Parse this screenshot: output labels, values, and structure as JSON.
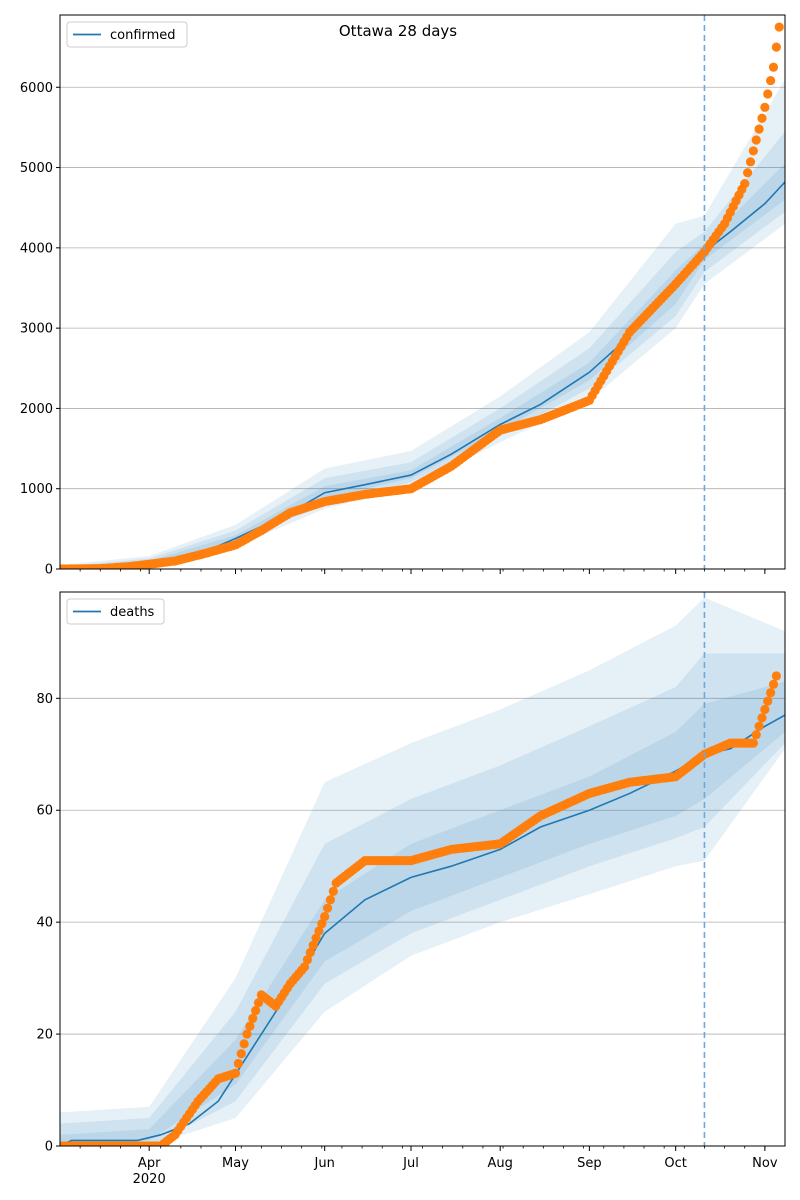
{
  "title": "Ottawa 28 days",
  "colors": {
    "line": "#1f77b4",
    "points": "#ff7f0e",
    "band": "#1f77b4",
    "grid": "#b0b0b0",
    "vline": "#6fa8dc"
  },
  "chart_data": [
    {
      "type": "line",
      "title": "Ottawa 28 days",
      "xlabel": "",
      "ylabel": "",
      "legend": {
        "entries": [
          "confirmed"
        ],
        "placement": "top-left"
      },
      "grid": "horizontal",
      "xlim": [
        "2020-03-01",
        "2020-11-08"
      ],
      "ylim": [
        0,
        6900
      ],
      "yticks": [
        0,
        1000,
        2000,
        3000,
        4000,
        5000,
        6000
      ],
      "xticks": [
        {
          "date": "2020-04-01",
          "label": "Apr",
          "sublabel": "2020"
        },
        {
          "date": "2020-05-01",
          "label": "May"
        },
        {
          "date": "2020-06-01",
          "label": "Jun"
        },
        {
          "date": "2020-07-01",
          "label": "Jul"
        },
        {
          "date": "2020-08-01",
          "label": "Aug"
        },
        {
          "date": "2020-09-01",
          "label": "Sep"
        },
        {
          "date": "2020-10-01",
          "label": "Oct"
        },
        {
          "date": "2020-11-01",
          "label": "Nov"
        }
      ],
      "forecast_start": "2020-10-11",
      "series": [
        {
          "name": "confirmed",
          "kind": "model-line",
          "x": [
            "2020-03-01",
            "2020-03-15",
            "2020-03-25",
            "2020-04-01",
            "2020-04-10",
            "2020-04-20",
            "2020-05-01",
            "2020-05-10",
            "2020-05-20",
            "2020-06-01",
            "2020-06-15",
            "2020-07-01",
            "2020-07-15",
            "2020-08-01",
            "2020-08-15",
            "2020-09-01",
            "2020-09-15",
            "2020-10-01",
            "2020-10-11",
            "2020-10-20",
            "2020-11-01",
            "2020-11-08"
          ],
          "y": [
            0,
            10,
            40,
            70,
            120,
            210,
            380,
            530,
            700,
            950,
            1050,
            1170,
            1430,
            1800,
            2050,
            2450,
            2900,
            3500,
            3950,
            4200,
            4550,
            4820
          ]
        },
        {
          "name": "",
          "kind": "observed-points",
          "x": [
            "2020-03-01",
            "2020-03-15",
            "2020-03-25",
            "2020-04-01",
            "2020-04-10",
            "2020-04-20",
            "2020-05-01",
            "2020-05-10",
            "2020-05-20",
            "2020-06-01",
            "2020-06-15",
            "2020-07-01",
            "2020-07-15",
            "2020-08-01",
            "2020-08-15",
            "2020-09-01",
            "2020-09-15",
            "2020-10-01",
            "2020-10-11",
            "2020-10-18",
            "2020-10-25",
            "2020-11-01",
            "2020-11-04",
            "2020-11-06"
          ],
          "y": [
            0,
            5,
            30,
            60,
            100,
            190,
            300,
            480,
            700,
            840,
            930,
            1000,
            1280,
            1730,
            1860,
            2100,
            2950,
            3550,
            3950,
            4300,
            4800,
            5750,
            6250,
            6750
          ]
        }
      ],
      "bands": [
        {
          "x": [
            "2020-03-01",
            "2020-04-01",
            "2020-05-01",
            "2020-06-01",
            "2020-07-01",
            "2020-08-01",
            "2020-09-01",
            "2020-10-01",
            "2020-10-11",
            "2020-11-08"
          ],
          "lower": [
            0,
            40,
            280,
            750,
            1020,
            1580,
            2100,
            3000,
            3550,
            4300
          ],
          "upper": [
            50,
            160,
            550,
            1250,
            1470,
            2150,
            2950,
            4300,
            4400,
            6100
          ]
        },
        {
          "x": [
            "2020-03-01",
            "2020-04-01",
            "2020-05-01",
            "2020-06-01",
            "2020-07-01",
            "2020-08-01",
            "2020-09-01",
            "2020-10-01",
            "2020-10-11",
            "2020-11-08"
          ],
          "lower": [
            0,
            50,
            310,
            820,
            1080,
            1650,
            2250,
            3150,
            3700,
            4450
          ],
          "upper": [
            30,
            130,
            480,
            1130,
            1330,
            2000,
            2750,
            3950,
            4200,
            5450
          ]
        },
        {
          "x": [
            "2020-03-01",
            "2020-04-01",
            "2020-05-01",
            "2020-06-01",
            "2020-07-01",
            "2020-08-01",
            "2020-09-01",
            "2020-10-01",
            "2020-10-11",
            "2020-11-08"
          ],
          "lower": [
            0,
            60,
            340,
            880,
            1130,
            1720,
            2350,
            3300,
            3850,
            4600
          ],
          "upper": [
            20,
            100,
            420,
            1030,
            1230,
            1880,
            2570,
            3720,
            4050,
            5050
          ]
        }
      ]
    },
    {
      "type": "line",
      "title": "",
      "xlabel": "",
      "ylabel": "",
      "legend": {
        "entries": [
          "deaths"
        ],
        "placement": "top-left"
      },
      "grid": "horizontal",
      "xlim": [
        "2020-03-01",
        "2020-11-08"
      ],
      "ylim": [
        0,
        99
      ],
      "yticks": [
        0,
        20,
        40,
        60,
        80
      ],
      "xticks": [
        {
          "date": "2020-04-01",
          "label": "Apr",
          "sublabel": "2020"
        },
        {
          "date": "2020-05-01",
          "label": "May"
        },
        {
          "date": "2020-06-01",
          "label": "Jun"
        },
        {
          "date": "2020-07-01",
          "label": "Jul"
        },
        {
          "date": "2020-08-01",
          "label": "Aug"
        },
        {
          "date": "2020-09-01",
          "label": "Sep"
        },
        {
          "date": "2020-10-01",
          "label": "Oct"
        },
        {
          "date": "2020-11-01",
          "label": "Nov"
        }
      ],
      "forecast_start": "2020-10-11",
      "series": [
        {
          "name": "deaths",
          "kind": "model-line",
          "x": [
            "2020-03-01",
            "2020-03-05",
            "2020-03-28",
            "2020-04-05",
            "2020-04-15",
            "2020-04-25",
            "2020-05-05",
            "2020-05-15",
            "2020-05-25",
            "2020-06-01",
            "2020-06-15",
            "2020-07-01",
            "2020-07-15",
            "2020-08-01",
            "2020-08-15",
            "2020-09-01",
            "2020-09-15",
            "2020-10-01",
            "2020-10-11",
            "2020-10-20",
            "2020-11-01",
            "2020-11-08"
          ],
          "y": [
            0,
            1,
            1,
            2,
            4,
            8,
            16,
            24,
            32,
            38,
            44,
            48,
            50,
            53,
            57,
            60,
            63,
            67,
            70,
            71,
            75,
            77
          ]
        },
        {
          "name": "",
          "kind": "observed-points",
          "x": [
            "2020-03-01",
            "2020-04-05",
            "2020-04-10",
            "2020-04-18",
            "2020-04-25",
            "2020-05-01",
            "2020-05-05",
            "2020-05-10",
            "2020-05-15",
            "2020-05-20",
            "2020-05-25",
            "2020-06-01",
            "2020-06-05",
            "2020-06-15",
            "2020-07-01",
            "2020-07-15",
            "2020-08-01",
            "2020-08-15",
            "2020-09-01",
            "2020-09-15",
            "2020-10-01",
            "2020-10-11",
            "2020-10-20",
            "2020-10-28",
            "2020-11-01",
            "2020-11-05"
          ],
          "y": [
            0,
            0,
            2,
            8,
            12,
            13,
            20,
            27,
            25,
            29,
            32,
            41,
            47,
            51,
            51,
            53,
            54,
            59,
            63,
            65,
            66,
            70,
            72,
            72,
            78,
            84
          ]
        }
      ],
      "bands": [
        {
          "x": [
            "2020-03-01",
            "2020-04-01",
            "2020-05-01",
            "2020-06-01",
            "2020-07-01",
            "2020-08-01",
            "2020-09-01",
            "2020-10-01",
            "2020-10-11",
            "2020-11-08"
          ],
          "lower": [
            0,
            0,
            5,
            24,
            34,
            40,
            45,
            50,
            51,
            71
          ],
          "upper": [
            6,
            7,
            30,
            65,
            72,
            78,
            85,
            93,
            98,
            92
          ]
        },
        {
          "x": [
            "2020-03-01",
            "2020-04-01",
            "2020-05-01",
            "2020-06-01",
            "2020-07-01",
            "2020-08-01",
            "2020-09-01",
            "2020-10-01",
            "2020-10-11",
            "2020-11-08"
          ],
          "lower": [
            0,
            0,
            8,
            29,
            38,
            44,
            50,
            55,
            57,
            72
          ],
          "upper": [
            4,
            5,
            24,
            54,
            62,
            68,
            75,
            82,
            88,
            88
          ]
        },
        {
          "x": [
            "2020-03-01",
            "2020-04-01",
            "2020-05-01",
            "2020-06-01",
            "2020-07-01",
            "2020-08-01",
            "2020-09-01",
            "2020-10-01",
            "2020-10-11",
            "2020-11-08"
          ],
          "lower": [
            0,
            1,
            11,
            33,
            42,
            48,
            54,
            59,
            62,
            74
          ],
          "upper": [
            2,
            3,
            19,
            44,
            54,
            60,
            66,
            74,
            79,
            83
          ]
        }
      ]
    }
  ]
}
